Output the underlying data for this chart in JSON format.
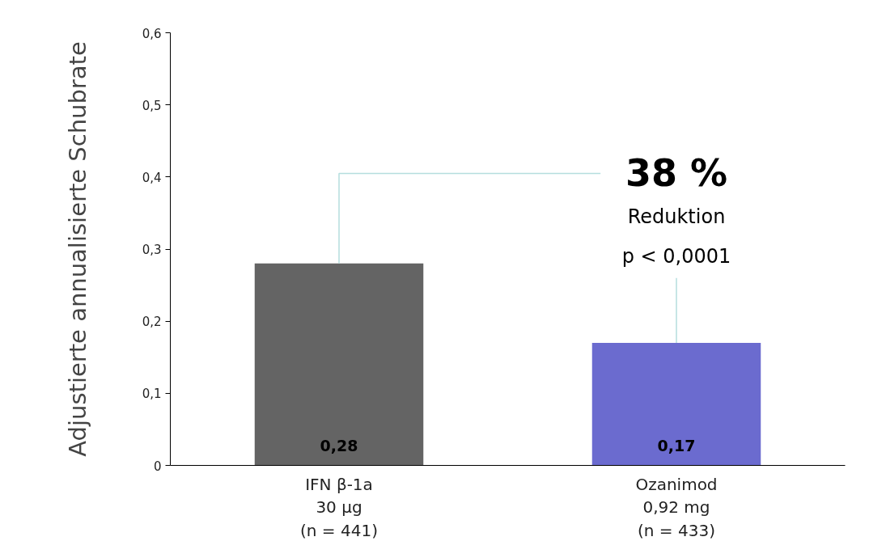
{
  "chart_data": {
    "type": "bar",
    "ylabel": "Adjustierte annualisierte Schubrate",
    "categories": [
      "IFN β-1a\n30 µg\n(n = 441)",
      "Ozanimod\n0,92 mg\n(n = 433)"
    ],
    "values": [
      0.28,
      0.17
    ],
    "colors": [
      "#646464",
      "#6b6bcf"
    ],
    "value_labels": [
      "0,28",
      "0,17"
    ],
    "ylim": [
      0,
      0.6
    ],
    "yticks": [
      0,
      {
        "value": 0.1,
        "label": "0,1"
      },
      {
        "value": 0.2,
        "label": "0,2"
      },
      {
        "value": 0.3,
        "label": "0,3"
      },
      {
        "value": 0.4,
        "label": "0,4"
      },
      {
        "value": 0.5,
        "label": "0,5"
      },
      {
        "value": 0.6,
        "label": "0,6"
      }
    ],
    "annotations": [
      "38 %",
      "Reduktion",
      {
        "text": "p < 0,0001",
        "y": 0.17
      }
    ],
    "grid": false
  }
}
